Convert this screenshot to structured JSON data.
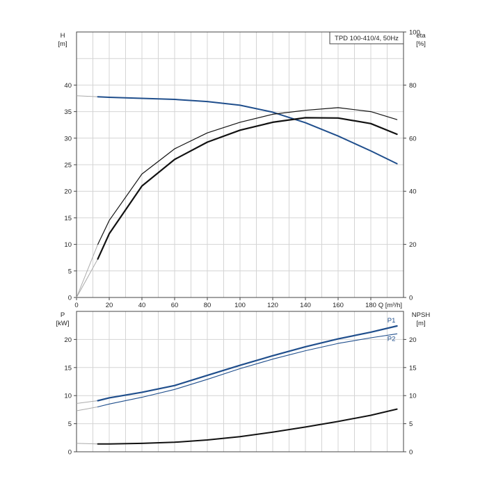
{
  "chart_data": [
    {
      "type": "line",
      "title": "TPD 100-410/4, 50Hz",
      "xlabel": "Q [m³/h]",
      "x_ticks": [
        "0",
        "20",
        "40",
        "60",
        "80",
        "100",
        "120",
        "140",
        "160",
        "180"
      ],
      "xlim": [
        0,
        200
      ],
      "left_axis": {
        "label": "H",
        "unit": "[m]",
        "ylim": [
          0,
          50
        ],
        "ticks": [
          "0",
          "5",
          "10",
          "15",
          "20",
          "25",
          "30",
          "35",
          "40"
        ]
      },
      "right_axis": {
        "label": "eta",
        "unit": "[%]",
        "ylim": [
          0,
          100
        ],
        "ticks": [
          "0",
          "20",
          "40",
          "60",
          "80",
          "100"
        ]
      },
      "grid": true,
      "series": [
        {
          "id": "head",
          "axis": "left",
          "color": "#1f4e8c",
          "x": [
            13,
            20,
            40,
            60,
            80,
            100,
            120,
            140,
            160,
            180,
            196
          ],
          "y": [
            37.8,
            37.7,
            37.5,
            37.3,
            36.9,
            36.2,
            34.9,
            32.9,
            30.4,
            27.6,
            25.2
          ],
          "extension": {
            "x": [
              0,
              13
            ],
            "y": [
              38.0,
              37.8
            ]
          }
        },
        {
          "id": "efficiency-outer",
          "axis": "right",
          "color": "#111111",
          "width": 1.2,
          "x": [
            13,
            20,
            40,
            60,
            80,
            100,
            120,
            140,
            160,
            180,
            196
          ],
          "y": [
            20,
            29,
            46.5,
            56,
            62,
            66,
            69,
            70.5,
            71.5,
            70,
            67
          ],
          "extension": {
            "x": [
              0,
              13
            ],
            "y": [
              0,
              20
            ]
          }
        },
        {
          "id": "efficiency-inner",
          "axis": "right",
          "color": "#111111",
          "width": 2.2,
          "x": [
            13,
            20,
            40,
            60,
            80,
            100,
            120,
            140,
            160,
            180,
            196
          ],
          "y": [
            14.5,
            24,
            42,
            52,
            58.5,
            63,
            66,
            67.7,
            67.6,
            65.5,
            61.5
          ],
          "extension": {
            "x": [
              0,
              13
            ],
            "y": [
              0,
              14.5
            ]
          }
        }
      ]
    },
    {
      "type": "line",
      "xlim": [
        0,
        200
      ],
      "left_axis": {
        "label": "P",
        "unit": "[kW]",
        "ylim": [
          0,
          25
        ],
        "ticks": [
          "0",
          "5",
          "10",
          "15",
          "20"
        ]
      },
      "right_axis": {
        "label": "NPSH",
        "unit": "[m]",
        "ylim": [
          0,
          25
        ],
        "ticks": [
          "0",
          "5",
          "10",
          "15",
          "20"
        ]
      },
      "grid": true,
      "series": [
        {
          "id": "P1",
          "name": "P1",
          "axis": "left",
          "color": "#1f4e8c",
          "width": 2.2,
          "x": [
            13,
            20,
            40,
            60,
            80,
            100,
            120,
            140,
            160,
            180,
            196
          ],
          "y": [
            9.1,
            9.6,
            10.6,
            11.8,
            13.6,
            15.4,
            17.1,
            18.7,
            20.1,
            21.3,
            22.4
          ],
          "extension": {
            "x": [
              0,
              13
            ],
            "y": [
              8.6,
              9.1
            ]
          }
        },
        {
          "id": "P2",
          "name": "P2",
          "axis": "left",
          "color": "#1f4e8c",
          "width": 1.1,
          "x": [
            13,
            20,
            40,
            60,
            80,
            100,
            120,
            140,
            160,
            180,
            196
          ],
          "y": [
            8.0,
            8.5,
            9.7,
            11.1,
            12.9,
            14.8,
            16.5,
            18.0,
            19.3,
            20.3,
            21.0
          ],
          "extension": {
            "x": [
              0,
              13
            ],
            "y": [
              7.3,
              8.0
            ]
          }
        },
        {
          "id": "npsh",
          "axis": "right",
          "color": "#111111",
          "width": 2.0,
          "x": [
            13,
            20,
            40,
            60,
            80,
            100,
            120,
            140,
            160,
            180,
            196
          ],
          "y": [
            1.4,
            1.4,
            1.5,
            1.7,
            2.1,
            2.7,
            3.5,
            4.4,
            5.4,
            6.5,
            7.6
          ],
          "extension": {
            "x": [
              0,
              13
            ],
            "y": [
              1.5,
              1.4
            ]
          }
        }
      ]
    }
  ]
}
